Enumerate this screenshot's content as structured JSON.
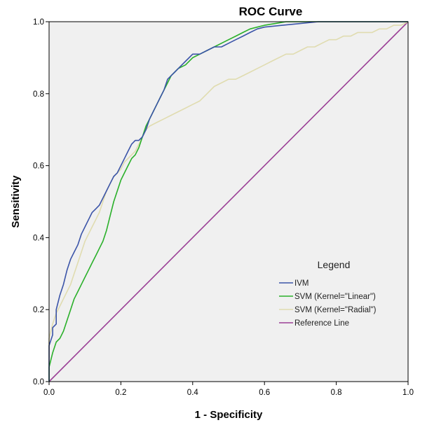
{
  "chart_data": {
    "type": "line",
    "title": "ROC Curve",
    "xlabel": "1 - Specificity",
    "ylabel": "Sensitivity",
    "xlim": [
      0.0,
      1.0
    ],
    "ylim": [
      0.0,
      1.0
    ],
    "xticks": [
      "0.0",
      "0.2",
      "0.4",
      "0.6",
      "0.8",
      "1.0"
    ],
    "yticks": [
      "0.0",
      "0.2",
      "0.4",
      "0.6",
      "0.8",
      "1.0"
    ],
    "grid": false,
    "plot_background": "#f0f0f0",
    "legend_title": "Legend",
    "legend_position": "bottom-right",
    "series": [
      {
        "name": "IVM",
        "color": "#3b54a8",
        "x": [
          0.0,
          0.0,
          0.01,
          0.01,
          0.02,
          0.02,
          0.03,
          0.04,
          0.05,
          0.06,
          0.07,
          0.08,
          0.09,
          0.1,
          0.11,
          0.12,
          0.13,
          0.14,
          0.15,
          0.16,
          0.17,
          0.18,
          0.19,
          0.2,
          0.21,
          0.22,
          0.23,
          0.24,
          0.25,
          0.26,
          0.27,
          0.28,
          0.29,
          0.3,
          0.31,
          0.32,
          0.33,
          0.34,
          0.35,
          0.36,
          0.37,
          0.38,
          0.4,
          0.42,
          0.44,
          0.46,
          0.48,
          0.5,
          0.52,
          0.54,
          0.56,
          0.58,
          0.6,
          0.65,
          0.7,
          0.75,
          1.0
        ],
        "y": [
          0.0,
          0.1,
          0.13,
          0.15,
          0.16,
          0.2,
          0.24,
          0.27,
          0.31,
          0.34,
          0.36,
          0.38,
          0.41,
          0.43,
          0.45,
          0.47,
          0.48,
          0.49,
          0.51,
          0.53,
          0.55,
          0.57,
          0.58,
          0.6,
          0.62,
          0.64,
          0.66,
          0.67,
          0.67,
          0.68,
          0.7,
          0.73,
          0.75,
          0.77,
          0.79,
          0.81,
          0.84,
          0.85,
          0.86,
          0.87,
          0.88,
          0.89,
          0.91,
          0.91,
          0.92,
          0.93,
          0.93,
          0.94,
          0.95,
          0.96,
          0.97,
          0.98,
          0.985,
          0.99,
          0.995,
          1.0,
          1.0
        ]
      },
      {
        "name": "SVM (Kernel=\"Linear\")",
        "color": "#2ab02a",
        "x": [
          0.0,
          0.0,
          0.01,
          0.02,
          0.03,
          0.04,
          0.05,
          0.06,
          0.07,
          0.08,
          0.09,
          0.1,
          0.11,
          0.12,
          0.13,
          0.14,
          0.15,
          0.16,
          0.17,
          0.18,
          0.19,
          0.2,
          0.21,
          0.22,
          0.23,
          0.24,
          0.25,
          0.26,
          0.27,
          0.28,
          0.29,
          0.3,
          0.31,
          0.32,
          0.33,
          0.34,
          0.35,
          0.36,
          0.38,
          0.4,
          0.42,
          0.44,
          0.46,
          0.48,
          0.5,
          0.52,
          0.54,
          0.56,
          0.58,
          0.6,
          0.63,
          0.66,
          0.7,
          0.8,
          1.0
        ],
        "y": [
          0.0,
          0.04,
          0.08,
          0.11,
          0.12,
          0.14,
          0.17,
          0.2,
          0.23,
          0.25,
          0.27,
          0.29,
          0.31,
          0.33,
          0.35,
          0.37,
          0.39,
          0.42,
          0.46,
          0.5,
          0.53,
          0.56,
          0.58,
          0.6,
          0.62,
          0.63,
          0.65,
          0.68,
          0.71,
          0.73,
          0.75,
          0.77,
          0.79,
          0.81,
          0.83,
          0.85,
          0.86,
          0.87,
          0.88,
          0.9,
          0.91,
          0.92,
          0.93,
          0.94,
          0.95,
          0.96,
          0.97,
          0.98,
          0.985,
          0.99,
          0.995,
          1.0,
          1.0,
          1.0,
          1.0
        ]
      },
      {
        "name": "SVM (Kernel=\"Radial\")",
        "color": "#e0dcb0",
        "x": [
          0.0,
          0.0,
          0.01,
          0.02,
          0.03,
          0.04,
          0.05,
          0.06,
          0.07,
          0.08,
          0.09,
          0.1,
          0.11,
          0.12,
          0.13,
          0.14,
          0.15,
          0.16,
          0.17,
          0.18,
          0.19,
          0.2,
          0.21,
          0.22,
          0.23,
          0.24,
          0.25,
          0.26,
          0.27,
          0.28,
          0.3,
          0.32,
          0.34,
          0.36,
          0.38,
          0.4,
          0.42,
          0.44,
          0.46,
          0.48,
          0.5,
          0.52,
          0.54,
          0.56,
          0.58,
          0.6,
          0.62,
          0.64,
          0.66,
          0.68,
          0.7,
          0.72,
          0.74,
          0.76,
          0.78,
          0.8,
          0.82,
          0.84,
          0.86,
          0.88,
          0.9,
          0.92,
          0.94,
          0.96,
          0.98,
          1.0
        ],
        "y": [
          0.0,
          0.12,
          0.16,
          0.19,
          0.21,
          0.23,
          0.25,
          0.27,
          0.3,
          0.33,
          0.36,
          0.39,
          0.41,
          0.43,
          0.45,
          0.47,
          0.5,
          0.53,
          0.55,
          0.57,
          0.58,
          0.59,
          0.61,
          0.62,
          0.63,
          0.64,
          0.66,
          0.68,
          0.7,
          0.71,
          0.72,
          0.73,
          0.74,
          0.75,
          0.76,
          0.77,
          0.78,
          0.8,
          0.82,
          0.83,
          0.84,
          0.84,
          0.85,
          0.86,
          0.87,
          0.88,
          0.89,
          0.9,
          0.91,
          0.91,
          0.92,
          0.93,
          0.93,
          0.94,
          0.95,
          0.95,
          0.96,
          0.96,
          0.97,
          0.97,
          0.97,
          0.98,
          0.98,
          0.99,
          0.99,
          1.0
        ]
      },
      {
        "name": "Reference Line",
        "color": "#9b3f96",
        "x": [
          0.0,
          1.0
        ],
        "y": [
          0.0,
          1.0
        ]
      }
    ]
  }
}
